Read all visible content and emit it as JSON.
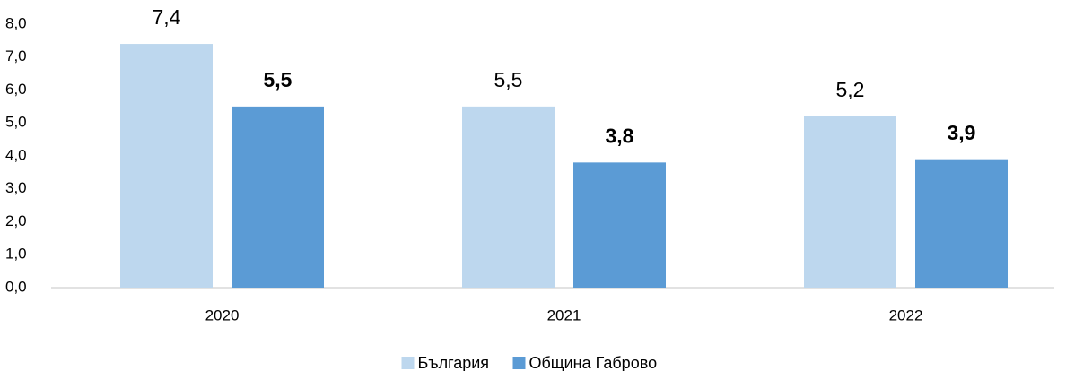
{
  "chart_data": {
    "type": "bar",
    "categories": [
      "2020",
      "2021",
      "2022"
    ],
    "series": [
      {
        "name": "България",
        "color": "#bdd7ee",
        "label_weight": "normal",
        "values": [
          7.4,
          5.5,
          5.2
        ],
        "value_labels": [
          "7,4",
          "5,5",
          "5,2"
        ]
      },
      {
        "name": "Община Габрово",
        "color": "#5b9bd5",
        "label_weight": "bold",
        "values": [
          5.5,
          3.8,
          3.9
        ],
        "value_labels": [
          "5,5",
          "3,8",
          "3,9"
        ]
      }
    ],
    "ylim": [
      0,
      8
    ],
    "yticks": [
      {
        "value": 0,
        "label": "0,0"
      },
      {
        "value": 1,
        "label": "1,0"
      },
      {
        "value": 2,
        "label": "2,0"
      },
      {
        "value": 3,
        "label": "3,0"
      },
      {
        "value": 4,
        "label": "4,0"
      },
      {
        "value": 5,
        "label": "5,0"
      },
      {
        "value": 6,
        "label": "6,0"
      },
      {
        "value": 7,
        "label": "7,0"
      },
      {
        "value": 8,
        "label": "8,0"
      }
    ],
    "grid": false,
    "legend": "bottom"
  }
}
